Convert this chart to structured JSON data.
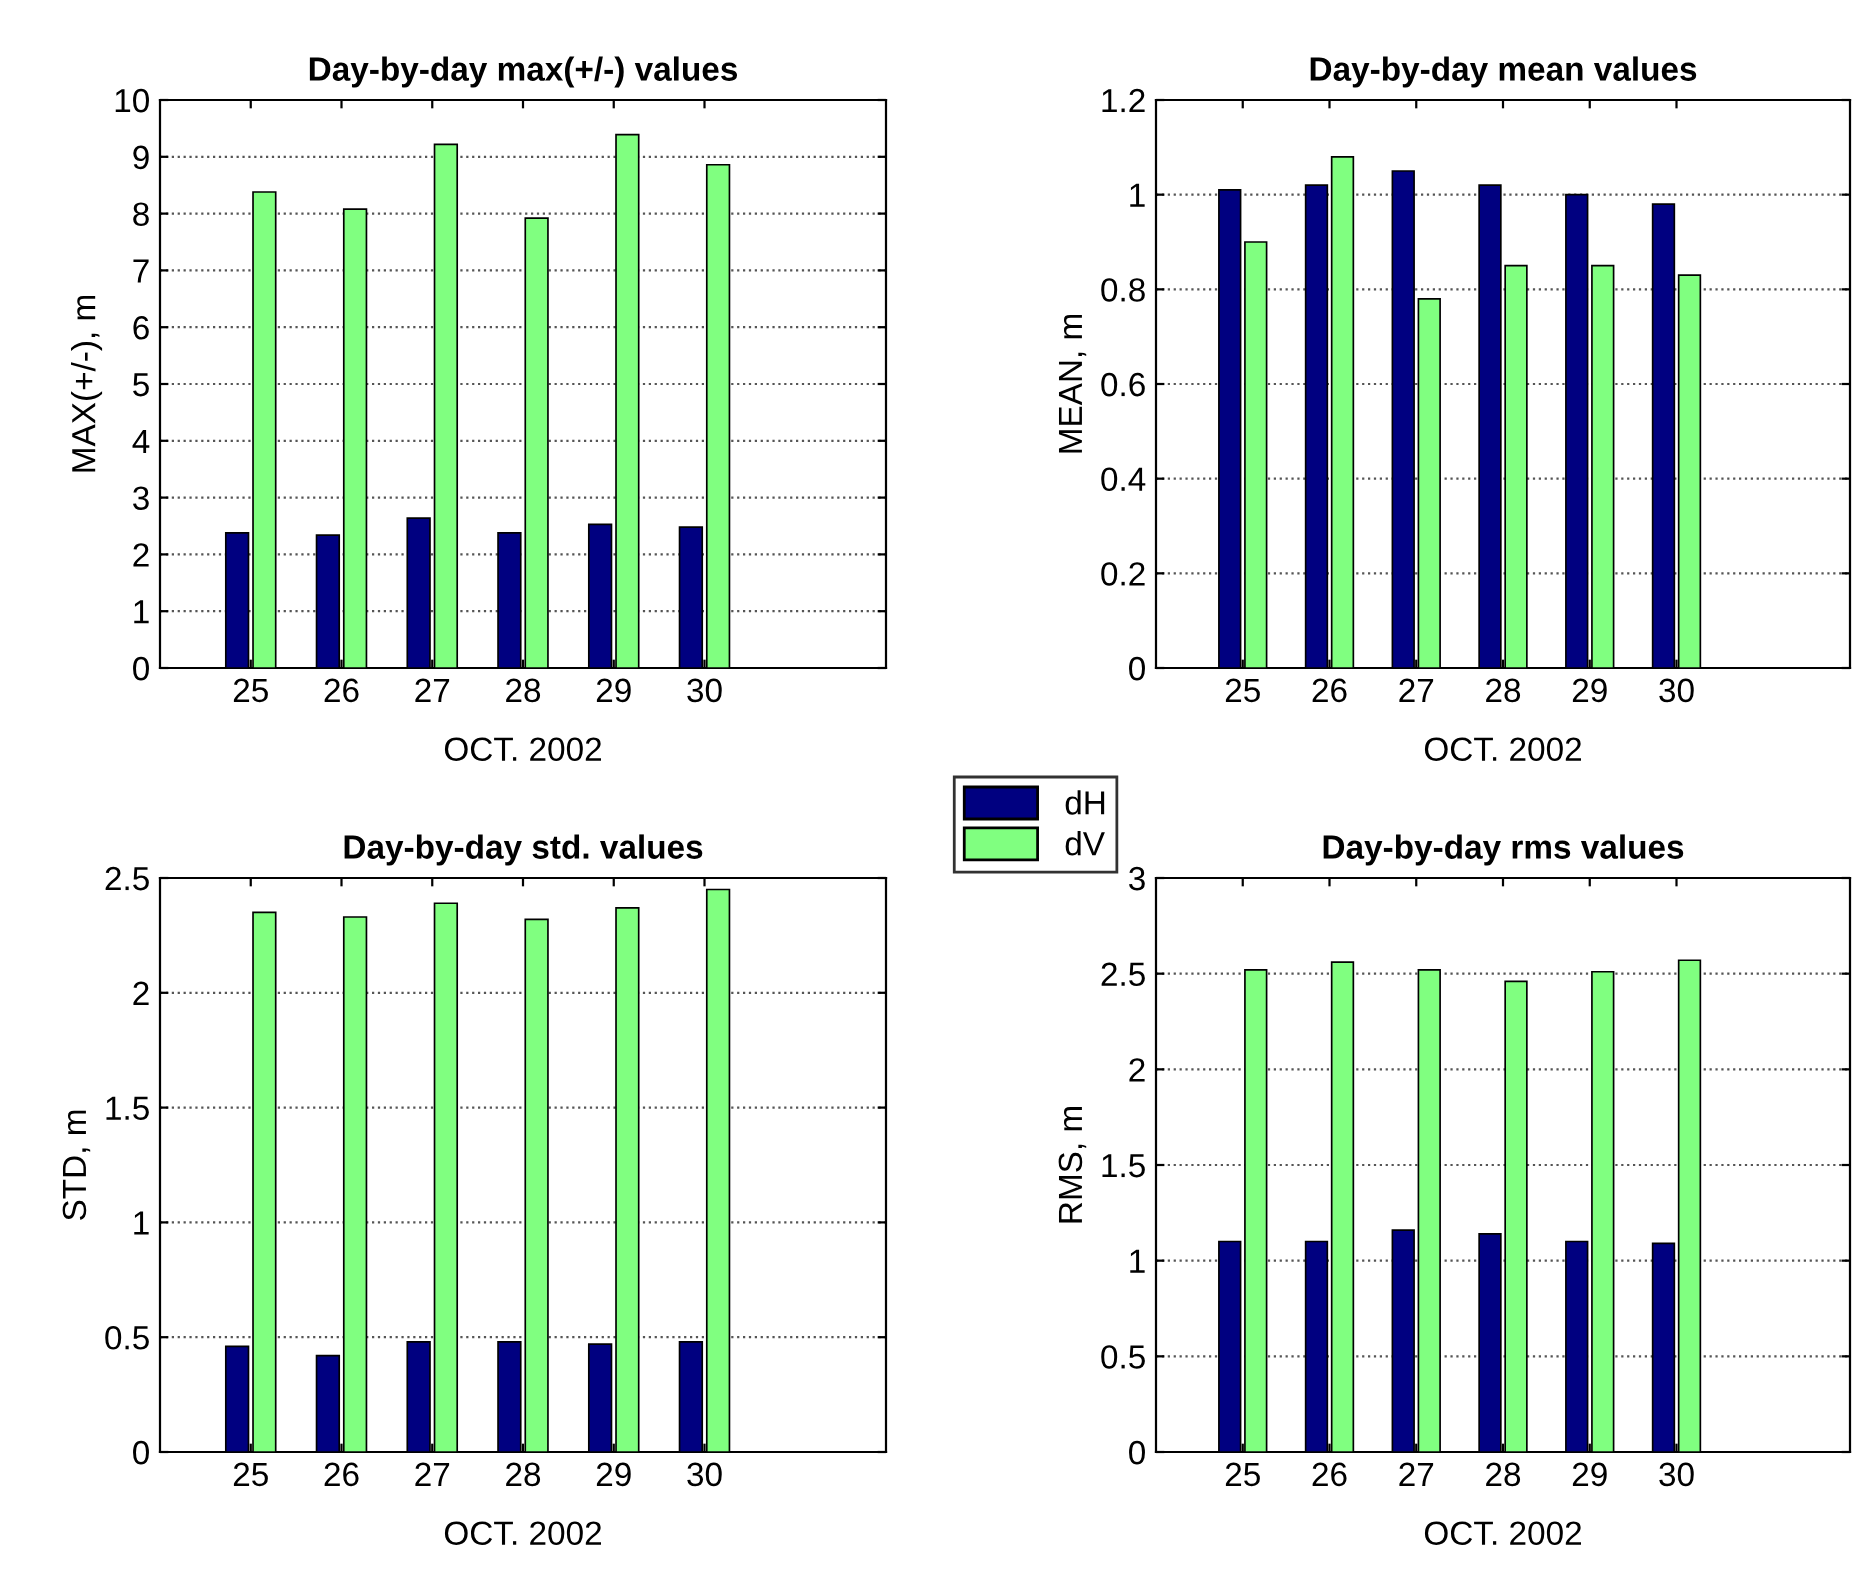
{
  "chart_data": [
    {
      "type": "bar",
      "title": "Day-by-day max(+/-) values",
      "xlabel": "OCT. 2002",
      "ylabel": "MAX(+/-), m",
      "x": [
        25,
        26,
        27,
        28,
        29,
        30
      ],
      "xlim": [
        24,
        32
      ],
      "xticks": [
        25,
        26,
        27,
        28,
        29,
        30
      ],
      "ylim": [
        0,
        10
      ],
      "yticks": [
        0,
        1,
        2,
        3,
        4,
        5,
        6,
        7,
        8,
        9,
        10
      ],
      "grid": "y",
      "series": [
        {
          "color": "#000080",
          "values": [
            2.38,
            2.34,
            2.64,
            2.38,
            2.53,
            2.48
          ]
        },
        {
          "color": "#80ff80",
          "values": [
            8.38,
            8.08,
            9.22,
            7.92,
            9.39,
            8.86
          ]
        }
      ]
    },
    {
      "type": "bar",
      "title": "Day-by-day mean values",
      "xlabel": "OCT. 2002",
      "ylabel": "MEAN, m",
      "x": [
        25,
        26,
        27,
        28,
        29,
        30
      ],
      "xlim": [
        24,
        32
      ],
      "xticks": [
        25,
        26,
        27,
        28,
        29,
        30
      ],
      "ylim": [
        0,
        1.2
      ],
      "yticks": [
        0,
        0.2,
        0.4,
        0.6,
        0.8,
        1,
        1.2
      ],
      "grid": "y",
      "legend": "bottom left",
      "series": [
        {
          "name": "dH",
          "color": "#000080",
          "values": [
            1.01,
            1.02,
            1.05,
            1.02,
            1.0,
            0.98
          ]
        },
        {
          "name": "dV",
          "color": "#80ff80",
          "values": [
            0.9,
            1.08,
            0.78,
            0.85,
            0.85,
            0.83
          ]
        }
      ]
    },
    {
      "type": "bar",
      "title": "Day-by-day std. values",
      "xlabel": "OCT. 2002",
      "ylabel": "STD, m",
      "x": [
        25,
        26,
        27,
        28,
        29,
        30
      ],
      "xlim": [
        24,
        32
      ],
      "xticks": [
        25,
        26,
        27,
        28,
        29,
        30
      ],
      "ylim": [
        0,
        2.5
      ],
      "yticks": [
        0,
        0.5,
        1,
        1.5,
        2,
        2.5
      ],
      "grid": "y",
      "series": [
        {
          "color": "#000080",
          "values": [
            0.46,
            0.42,
            0.48,
            0.48,
            0.47,
            0.48
          ]
        },
        {
          "color": "#80ff80",
          "values": [
            2.35,
            2.33,
            2.39,
            2.32,
            2.37,
            2.45
          ]
        }
      ]
    },
    {
      "type": "bar",
      "title": "Day-by-day rms values",
      "xlabel": "OCT. 2002",
      "ylabel": "RMS, m",
      "x": [
        25,
        26,
        27,
        28,
        29,
        30
      ],
      "xlim": [
        24,
        32
      ],
      "xticks": [
        25,
        26,
        27,
        28,
        29,
        30
      ],
      "ylim": [
        0,
        3
      ],
      "yticks": [
        0,
        0.5,
        1,
        1.5,
        2,
        2.5,
        3
      ],
      "grid": "y",
      "series": [
        {
          "color": "#000080",
          "values": [
            1.1,
            1.1,
            1.16,
            1.14,
            1.1,
            1.09
          ]
        },
        {
          "color": "#80ff80",
          "values": [
            2.52,
            2.56,
            2.52,
            2.46,
            2.51,
            2.57
          ]
        }
      ]
    }
  ]
}
